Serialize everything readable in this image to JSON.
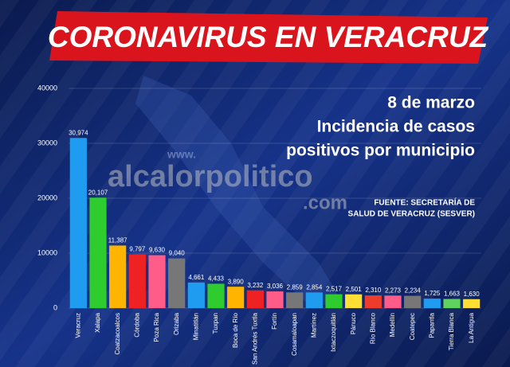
{
  "chart_data": {
    "type": "bar",
    "title": "CORONAVIRUS EN VERACRUZ",
    "subtitle": [
      "8 de marzo",
      "Incidencia de casos",
      "positivos por municipio"
    ],
    "source": [
      "FUENTE: SECRETARÍA DE",
      "SALUD DE VERACRUZ (SESVER)"
    ],
    "watermark": [
      "www.",
      "alcalorpolitico",
      ".com"
    ],
    "categories": [
      "Veracruz",
      "Xalapa",
      "Coatzacoalcos",
      "Córdoba",
      "Poza Rica",
      "Orizaba",
      "Minatitlán",
      "Tuxpan",
      "Boca de Río",
      "San Andrés Tuxtla",
      "Fortín",
      "Cosamaloapan",
      "Martínez",
      "Ixtaczoquitlán",
      "Pánuco",
      "Río Blanco",
      "Medellín",
      "Coatepec",
      "Papantla",
      "Tierra Blanca",
      "La Antigua"
    ],
    "values": [
      30974,
      20107,
      11387,
      9797,
      9630,
      9040,
      4661,
      4433,
      3890,
      3232,
      3036,
      2859,
      2854,
      2517,
      2501,
      2310,
      2273,
      2234,
      1725,
      1663,
      1630
    ],
    "value_labels": [
      "30,974",
      "20,107",
      "11,387",
      "9,797",
      "9,630",
      "9,040",
      "4,661",
      "4,433",
      "3,890",
      "3,232",
      "3,036",
      "2,859",
      "2,854",
      "2,517",
      "2,501",
      "2,310",
      "2,273",
      "2,234",
      "1,725",
      "1,663",
      "1,630"
    ],
    "colors": [
      "#1f9bf0",
      "#2ecc2e",
      "#ffb400",
      "#ee2222",
      "#ff5c8a",
      "#777777",
      "#1f9bf0",
      "#2ecc2e",
      "#ffb400",
      "#ee2222",
      "#ff5c8a",
      "#777777",
      "#1f9bf0",
      "#2ecc2e",
      "#ffdf33",
      "#ee3c2c",
      "#ff5c8a",
      "#777777",
      "#1f9bf0",
      "#5ed35e",
      "#ffdf33"
    ],
    "ylim": [
      0,
      40000
    ],
    "yticks": [
      0,
      10000,
      20000,
      30000,
      40000
    ],
    "grid": true
  }
}
